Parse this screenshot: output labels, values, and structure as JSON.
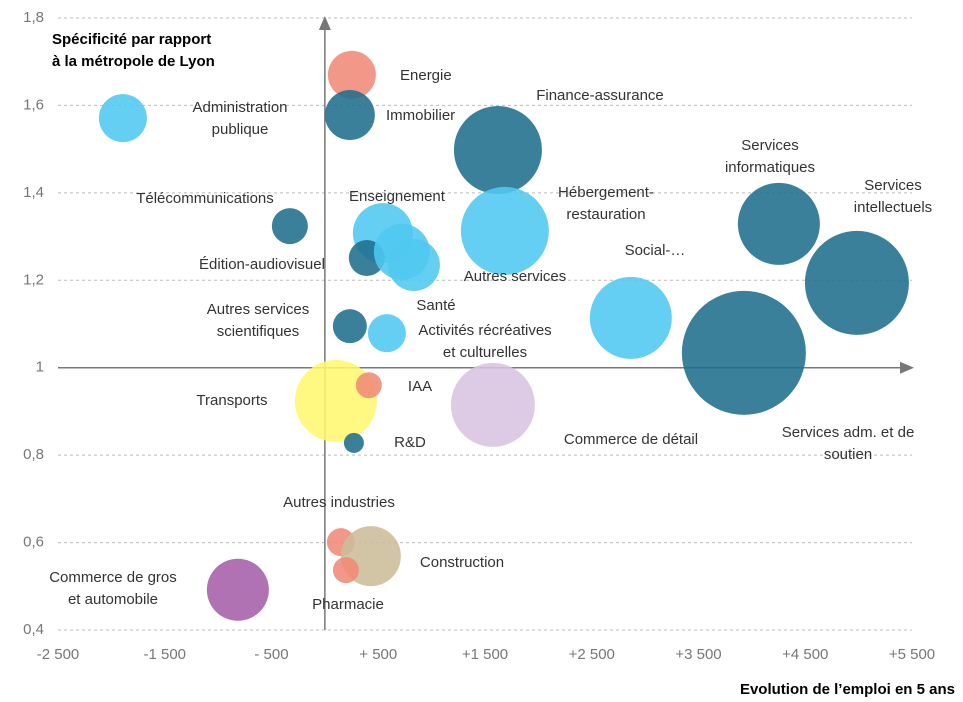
{
  "chart_data": {
    "type": "bubble",
    "y_label": [
      "Spécificité par rapport",
      "à la métropole de Lyon"
    ],
    "x_label": "Evolution de l’emploi en 5 ans",
    "xlim": [
      -2500,
      5500
    ],
    "xticks": [
      {
        "value": -2500,
        "label": "-2 500"
      },
      {
        "value": -1500,
        "label": "-1 500"
      },
      {
        "value": -500,
        "label": "- 500"
      },
      {
        "value": 500,
        "label": "+ 500"
      },
      {
        "value": 1500,
        "label": "+1 500"
      },
      {
        "value": 2500,
        "label": "+2 500"
      },
      {
        "value": 3500,
        "label": "+3 500"
      },
      {
        "value": 4500,
        "label": "+4 500"
      },
      {
        "value": 5500,
        "label": "+5 500"
      }
    ],
    "ylim": [
      0.4,
      1.8
    ],
    "yticks": [
      {
        "value": 0.4,
        "label": "0,4"
      },
      {
        "value": 0.6,
        "label": "0,6"
      },
      {
        "value": 0.8,
        "label": "0,8"
      },
      1,
      {
        "value": 1.2,
        "label": "1,2"
      },
      {
        "value": 1.4,
        "label": "1,4"
      },
      {
        "value": 1.6,
        "label": "1,6"
      },
      {
        "value": 1.8,
        "label": "1,8"
      }
    ],
    "grid": true,
    "series": [
      {
        "name": "Energie",
        "color": "#f08a78",
        "x": [
          253
        ],
        "values": [
          1.67
        ],
        "sizes": [
          24
        ]
      },
      {
        "name": "Immobilier",
        "color": "#1f6e8c",
        "x": [
          234
        ],
        "values": [
          1.578
        ],
        "sizes": [
          25
        ]
      },
      {
        "name": "Administration publique",
        "color": "#4fc8f0",
        "x": [
          -1892
        ],
        "values": [
          1.571
        ],
        "sizes": [
          24
        ]
      },
      {
        "name": "Finance-assurance",
        "color": "#1f6e8c",
        "x": [
          1621
        ],
        "values": [
          1.498
        ],
        "sizes": [
          44
        ]
      },
      {
        "name": "Télécommunications",
        "color": "#1f6e8c",
        "x": [
          -328
        ],
        "values": [
          1.324
        ],
        "sizes": [
          18
        ]
      },
      {
        "name": "Enseignement",
        "color": "#4fc8f0",
        "x": [
          543
        ],
        "values": [
          1.308
        ],
        "sizes": [
          30
        ]
      },
      {
        "name": "Hébergement-restauration",
        "color": "#4fc8f0",
        "x": [
          1686
        ],
        "values": [
          1.313
        ],
        "sizes": [
          44
        ]
      },
      {
        "name": "Édition-audiovisuel",
        "color": "#1f6e8c",
        "x": [
          393
        ],
        "values": [
          1.251
        ],
        "sizes": [
          18
        ]
      },
      {
        "name": "Autres services",
        "color": "#4fc8f0",
        "x": [
          721
        ],
        "values": [
          1.265
        ],
        "sizes": [
          28
        ]
      },
      {
        "name": "Santé",
        "color": "#4fc8f0",
        "x": [
          834
        ],
        "values": [
          1.235
        ],
        "sizes": [
          26
        ]
      },
      {
        "name": "Services informatiques",
        "color": "#1f6e8c",
        "x": [
          4253
        ],
        "values": [
          1.329
        ],
        "sizes": [
          41
        ]
      },
      {
        "name": "Services intellectuels",
        "color": "#1f6e8c",
        "x": [
          4984
        ],
        "values": [
          1.194
        ],
        "sizes": [
          52
        ]
      },
      {
        "name": "Social-…",
        "color": "#4fc8f0",
        "x": [
          2866
        ],
        "values": [
          1.114
        ],
        "sizes": [
          41
        ]
      },
      {
        "name": "Services adm. et de soutien",
        "color": "#1f6e8c",
        "x": [
          3925
        ],
        "values": [
          1.034
        ],
        "sizes": [
          62
        ]
      },
      {
        "name": "Autres services scientifiques",
        "color": "#1f6e8c",
        "x": [
          234
        ],
        "values": [
          1.095
        ],
        "sizes": [
          17
        ]
      },
      {
        "name": "Activités récréatives et culturelles",
        "color": "#4fc8f0",
        "x": [
          581
        ],
        "values": [
          1.079
        ],
        "sizes": [
          19
        ]
      },
      {
        "name": "Transports",
        "color": "#fff870",
        "x": [
          103
        ],
        "values": [
          0.924
        ],
        "sizes": [
          41
        ]
      },
      {
        "name": "IAA",
        "color": "#f08a78",
        "x": [
          412
        ],
        "values": [
          0.96
        ],
        "sizes": [
          13
        ]
      },
      {
        "name": "R&D",
        "color": "#1f6e8c",
        "x": [
          272
        ],
        "values": [
          0.828
        ],
        "sizes": [
          10
        ]
      },
      {
        "name": "Commerce de détail",
        "color": "#d8c4e2",
        "x": [
          1574
        ],
        "values": [
          0.915
        ],
        "sizes": [
          42
        ]
      },
      {
        "name": "Autres industries",
        "color": "#f08a78",
        "x": [
          150
        ],
        "values": [
          0.601
        ],
        "sizes": [
          14
        ]
      },
      {
        "name": "Construction",
        "color": "#cbbd98",
        "x": [
          431
        ],
        "values": [
          0.569
        ],
        "sizes": [
          30
        ]
      },
      {
        "name": "Pharmacie",
        "color": "#f08a78",
        "x": [
          197
        ],
        "values": [
          0.537
        ],
        "sizes": [
          13
        ]
      },
      {
        "name": "Commerce de gros et automobile",
        "color": "#a55fa8",
        "x": [
          -815
        ],
        "values": [
          0.492
        ],
        "sizes": [
          31
        ]
      }
    ]
  }
}
